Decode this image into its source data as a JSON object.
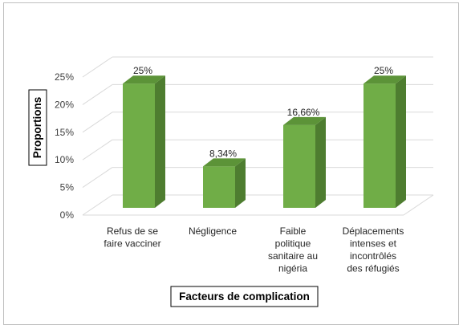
{
  "chart_data": {
    "type": "bar",
    "style": "3d-column",
    "ylabel": "Proportions",
    "xlabel": "Facteurs de complication",
    "ylim": [
      0,
      25
    ],
    "ytick_step": 5,
    "ytick_labels": [
      "0%",
      "5%",
      "10%",
      "15%",
      "20%",
      "25%"
    ],
    "grid": true,
    "legend": "none",
    "categories": [
      [
        "Refus de se",
        "faire vacciner"
      ],
      [
        "Négligence"
      ],
      [
        "Faible",
        "politique",
        "sanitaire au",
        "nigéria"
      ],
      [
        "Déplacements",
        "intenses et",
        "incontrôlés",
        "des réfugiés"
      ]
    ],
    "values": [
      25,
      8.34,
      16.66,
      25
    ],
    "data_labels": [
      "25%",
      "8,34%",
      "16,66%",
      "25%"
    ],
    "colors": {
      "front": "#70AD47",
      "side": "#4E7D30",
      "top": "#5C9338",
      "grid": "#D9D9D9",
      "floor": "#D9D9D9"
    }
  }
}
